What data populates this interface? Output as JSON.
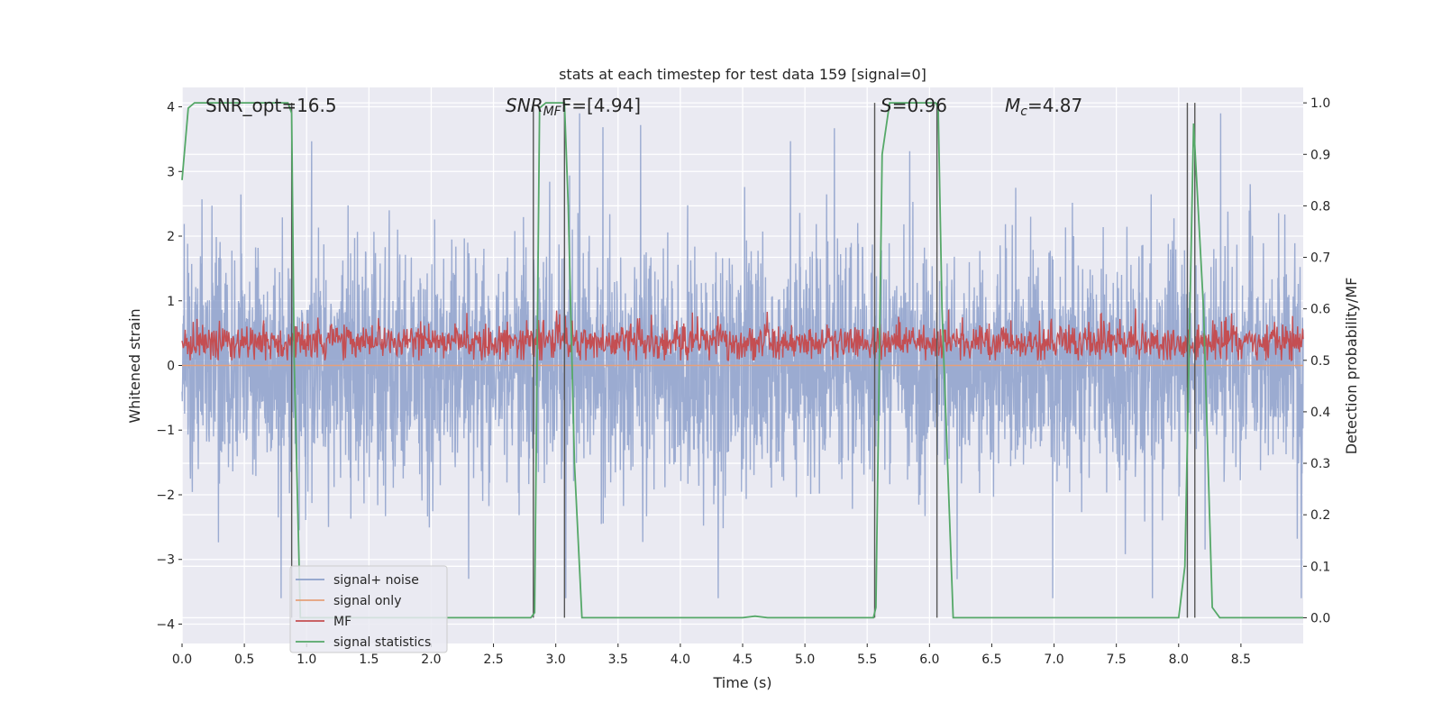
{
  "chart_data": {
    "type": "line",
    "title": "stats at each timestep for test data 159 [signal=0]",
    "xlabel": "Time (s)",
    "ylabel_left": "Whitened strain",
    "ylabel_right": "Detection probability/MF",
    "xlim": [
      0,
      9.0
    ],
    "ylim_left": [
      -4.3,
      4.3
    ],
    "ylim_right": [
      -0.05,
      1.03
    ],
    "xticks": [
      0.0,
      0.5,
      1.0,
      1.5,
      2.0,
      2.5,
      3.0,
      3.5,
      4.0,
      4.5,
      5.0,
      5.5,
      6.0,
      6.5,
      7.0,
      7.5,
      8.0,
      8.5
    ],
    "xtick_labels": [
      "0.0",
      "0.5",
      "1.0",
      "1.5",
      "2.0",
      "2.5",
      "3.0",
      "3.5",
      "4.0",
      "4.5",
      "5.0",
      "5.5",
      "6.0",
      "6.5",
      "7.0",
      "7.5",
      "8.0",
      "8.5"
    ],
    "yticks_left": [
      4,
      3,
      2,
      1,
      0,
      -1,
      -2,
      -3,
      -4
    ],
    "ytick_labels_left": [
      "4",
      "3",
      "2",
      "1",
      "0",
      "−1",
      "−2",
      "−3",
      "−4"
    ],
    "yticks_right": [
      1.0,
      0.9,
      0.8,
      0.7,
      0.6,
      0.5,
      0.4,
      0.3,
      0.2,
      0.1,
      0.0
    ],
    "ytick_labels_right": [
      "1.0",
      "0.9",
      "0.8",
      "0.7",
      "0.6",
      "0.5",
      "0.4",
      "0.3",
      "0.2",
      "0.1",
      "0.0"
    ],
    "grid": true,
    "legend_position": "lower-left",
    "annotations": {
      "snr_opt": "SNR_opt=16.5",
      "snr_mf_name": "SNR",
      "snr_mf_sub": "MF",
      "snr_mf_suffix": "F=[4.94]",
      "s_name": "S",
      "s_value": "=0.96",
      "mc_name": "M",
      "mc_sub": "c",
      "mc_value": "=4.87"
    },
    "series": [
      {
        "name": "signal+ noise",
        "color": "#8da0cb",
        "axis": "left",
        "description": "noisy whitened strain, roughly spanning -2 to 2 with spikes up to about 4 and down to about -3.6",
        "sample_seed": 159,
        "points": 3600
      },
      {
        "name": "signal only",
        "color": "#e5a07a",
        "axis": "left",
        "x": [
          0.0,
          9.0
        ],
        "y": [
          0.0,
          0.0
        ]
      },
      {
        "name": "MF",
        "color": "#c44e52",
        "axis": "right",
        "description": "matched-filter output fluctuating roughly between 0.5 and 0.62 on the right axis",
        "points": 1800
      },
      {
        "name": "signal statistics",
        "color": "#55a868",
        "axis": "right",
        "x": [
          0.0,
          0.05,
          0.1,
          0.2,
          0.85,
          0.88,
          0.9,
          0.95,
          2.8,
          2.83,
          2.87,
          2.92,
          3.07,
          3.1,
          3.15,
          3.21,
          4.5,
          4.6,
          4.7,
          5.55,
          5.57,
          5.62,
          5.68,
          6.05,
          6.07,
          6.1,
          6.19,
          8.0,
          8.05,
          8.12,
          8.2,
          8.27,
          8.33,
          9.0
        ],
        "y": [
          0.85,
          0.99,
          1.0,
          1.0,
          1.0,
          0.98,
          0.5,
          0.0,
          0.0,
          0.01,
          0.99,
          1.0,
          1.0,
          0.8,
          0.3,
          0.0,
          0.0,
          0.003,
          0.0,
          0.0,
          0.02,
          0.9,
          1.0,
          1.0,
          0.99,
          0.6,
          0.0,
          0.0,
          0.1,
          0.96,
          0.6,
          0.02,
          0.0,
          0.0
        ]
      }
    ],
    "vertical_lines_s": [
      0.88,
      2.82,
      3.07,
      5.56,
      6.06,
      8.07,
      8.13
    ]
  }
}
